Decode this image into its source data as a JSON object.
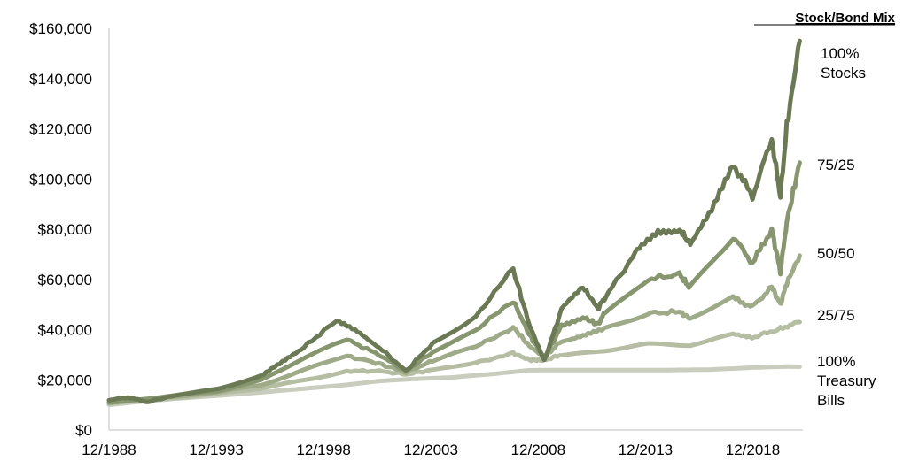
{
  "chart_data": {
    "type": "line",
    "title": "",
    "xlabel": "",
    "ylabel": "",
    "legend_title": "Stock/Bond Mix",
    "legend_placement": "right",
    "grid": false,
    "xlim": [
      1988.917,
      2021.25
    ],
    "ylim": [
      0,
      160000
    ],
    "y_ticks": [
      0,
      20000,
      40000,
      60000,
      80000,
      100000,
      120000,
      140000,
      160000
    ],
    "y_tick_labels": [
      "$0",
      "$20,000",
      "$40,000",
      "$60,000",
      "$80,000",
      "$100,000",
      "$120,000",
      "$140,000",
      "$160,000"
    ],
    "x_ticks": [
      1988.917,
      1993.917,
      1998.917,
      2003.917,
      2008.917,
      2013.917,
      2018.917
    ],
    "x_tick_labels": [
      "12/1988",
      "12/1993",
      "12/1998",
      "12/2003",
      "12/2008",
      "12/2013",
      "12/2018"
    ],
    "series": [
      {
        "label_lines": [
          "100%",
          "Treasury",
          "Bills"
        ],
        "color": "#c8cdbd",
        "points": [
          [
            1988.917,
            10000
          ],
          [
            1990,
            11000
          ],
          [
            1992,
            12500
          ],
          [
            1994,
            13700
          ],
          [
            1996,
            15000
          ],
          [
            1998,
            16500
          ],
          [
            2000,
            18000
          ],
          [
            2001.5,
            19500
          ],
          [
            2003,
            20300
          ],
          [
            2005,
            21000
          ],
          [
            2007,
            22500
          ],
          [
            2008.5,
            23800
          ],
          [
            2009.5,
            23900
          ],
          [
            2012,
            23900
          ],
          [
            2015,
            23900
          ],
          [
            2017,
            24100
          ],
          [
            2019,
            24900
          ],
          [
            2020.5,
            25300
          ],
          [
            2021.1,
            25200
          ]
        ]
      },
      {
        "label_lines": [
          "25/75"
        ],
        "color": "#b5bea3",
        "points": [
          [
            1988.917,
            10500
          ],
          [
            1990,
            11500
          ],
          [
            1992,
            13000
          ],
          [
            1994,
            14500
          ],
          [
            1996,
            16500
          ],
          [
            1998,
            20000
          ],
          [
            2000,
            23500
          ],
          [
            2001.5,
            23500
          ],
          [
            2002.75,
            22200
          ],
          [
            2004,
            24000
          ],
          [
            2006,
            27000
          ],
          [
            2007.75,
            30500
          ],
          [
            2008.5,
            28000
          ],
          [
            2009.2,
            27800
          ],
          [
            2010,
            30000
          ],
          [
            2012,
            31500
          ],
          [
            2014,
            34000
          ],
          [
            2016,
            34200
          ],
          [
            2018,
            38000
          ],
          [
            2019.0,
            37000
          ],
          [
            2020.2,
            40500
          ],
          [
            2021.1,
            43000
          ]
        ]
      },
      {
        "label_lines": [
          "50/50"
        ],
        "color": "#9fab88",
        "points": [
          [
            1988.917,
            10800
          ],
          [
            1990,
            11800
          ],
          [
            1992,
            13300
          ],
          [
            1994,
            15000
          ],
          [
            1996,
            18000
          ],
          [
            1998,
            24000
          ],
          [
            2000,
            29500
          ],
          [
            2001.5,
            26500
          ],
          [
            2002.75,
            23000
          ],
          [
            2004,
            27500
          ],
          [
            2006,
            33000
          ],
          [
            2007.75,
            41000
          ],
          [
            2008.5,
            33500
          ],
          [
            2009.2,
            29000
          ],
          [
            2010,
            35500
          ],
          [
            2011,
            37500
          ],
          [
            2012,
            40000
          ],
          [
            2014,
            46500
          ],
          [
            2015.5,
            47000
          ],
          [
            2016,
            44500
          ],
          [
            2018,
            52500
          ],
          [
            2018.9,
            49000
          ],
          [
            2019.8,
            57000
          ],
          [
            2020.2,
            50000
          ],
          [
            2020.5,
            58500
          ],
          [
            2021.1,
            69500
          ]
        ]
      },
      {
        "label_lines": [
          "75/25"
        ],
        "color": "#87966e",
        "points": [
          [
            1988.917,
            11000
          ],
          [
            1990,
            12000
          ],
          [
            1992,
            13600
          ],
          [
            1994,
            15600
          ],
          [
            1996,
            20000
          ],
          [
            1998,
            28500
          ],
          [
            2000,
            36000
          ],
          [
            2001.5,
            30000
          ],
          [
            2002.75,
            23500
          ],
          [
            2004,
            31000
          ],
          [
            2006,
            39500
          ],
          [
            2007.75,
            51500
          ],
          [
            2008.5,
            38000
          ],
          [
            2009.2,
            28500
          ],
          [
            2010,
            41500
          ],
          [
            2011,
            45000
          ],
          [
            2011.7,
            42000
          ],
          [
            2012,
            46500
          ],
          [
            2014,
            60000
          ],
          [
            2015.5,
            62000
          ],
          [
            2016,
            56500
          ],
          [
            2018,
            77000
          ],
          [
            2018.9,
            66500
          ],
          [
            2019.8,
            80000
          ],
          [
            2020.2,
            63000
          ],
          [
            2020.5,
            83000
          ],
          [
            2021.1,
            106500
          ]
        ]
      },
      {
        "label_lines": [
          "100%",
          "Stocks"
        ],
        "color": "#6b7a55",
        "points": [
          [
            1988.917,
            12000
          ],
          [
            1989.8,
            13000
          ],
          [
            1990.7,
            11200
          ],
          [
            1992,
            13800
          ],
          [
            1994,
            16500
          ],
          [
            1996,
            21500
          ],
          [
            1997,
            27000
          ],
          [
            1998,
            33000
          ],
          [
            1999.5,
            43500
          ],
          [
            2000.5,
            39000
          ],
          [
            2001.5,
            33000
          ],
          [
            2002.75,
            23500
          ],
          [
            2004,
            34500
          ],
          [
            2006,
            45500
          ],
          [
            2007.75,
            64000
          ],
          [
            2008.5,
            42000
          ],
          [
            2009.2,
            27500
          ],
          [
            2010,
            48000
          ],
          [
            2011,
            57000
          ],
          [
            2011.7,
            48500
          ],
          [
            2012,
            52500
          ],
          [
            2013.5,
            71000
          ],
          [
            2014.5,
            79000
          ],
          [
            2015.5,
            80000
          ],
          [
            2016,
            74000
          ],
          [
            2017,
            87000
          ],
          [
            2018,
            106000
          ],
          [
            2018.9,
            93000
          ],
          [
            2019.8,
            116000
          ],
          [
            2020.2,
            93000
          ],
          [
            2020.5,
            121000
          ],
          [
            2021.1,
            155000
          ]
        ]
      }
    ]
  }
}
